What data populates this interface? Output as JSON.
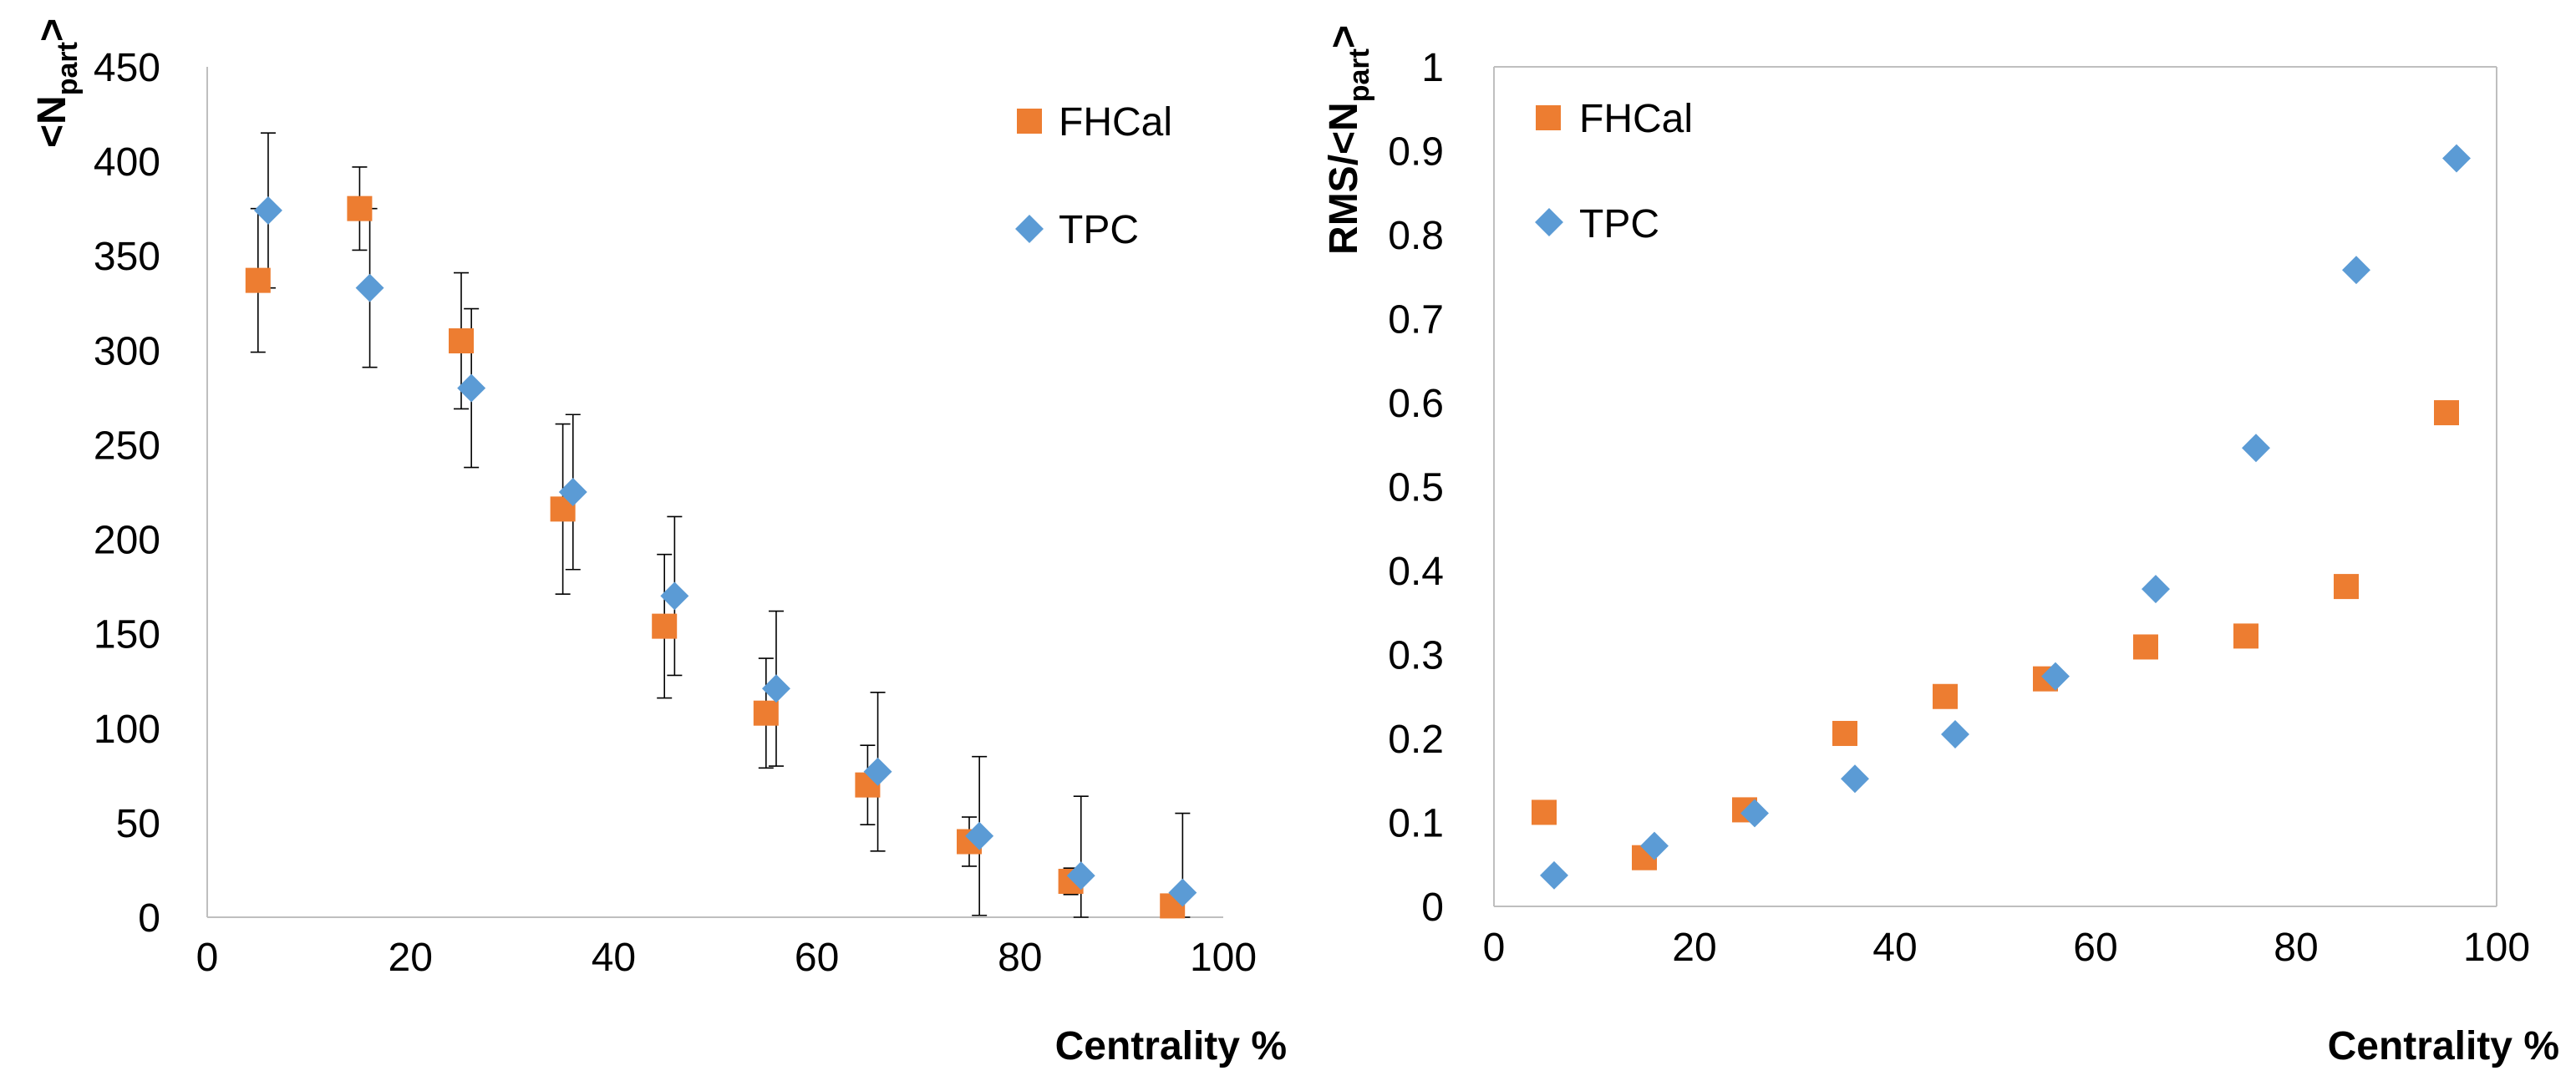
{
  "colors": {
    "fhcal": "#ED7D31",
    "tpc": "#5B9BD5",
    "axis": "#BFBFBF",
    "errorbar": "#000000"
  },
  "chart_data": [
    {
      "type": "scatter",
      "xlabel": "Centrality %",
      "ylabel_main": "<N",
      "ylabel_sub": "part",
      "ylabel_end": ">",
      "xlim": [
        0,
        100
      ],
      "ylim": [
        0,
        450
      ],
      "xticks": [
        0,
        20,
        40,
        60,
        80,
        100
      ],
      "yticks": [
        0,
        50,
        100,
        150,
        200,
        250,
        300,
        350,
        400,
        450
      ],
      "legend": "top-right",
      "series": [
        {
          "name": "FHCal",
          "marker": "square",
          "x": [
            5,
            15,
            25,
            35,
            45,
            55,
            65,
            75,
            85,
            95
          ],
          "y": [
            337,
            375,
            305,
            216,
            154,
            108,
            70,
            40,
            19,
            6
          ],
          "err": [
            38,
            22,
            36,
            45,
            38,
            29,
            21,
            13,
            7,
            2
          ]
        },
        {
          "name": "TPC",
          "marker": "diamond",
          "x": [
            6,
            16,
            26,
            36,
            46,
            56,
            66,
            76,
            86,
            96
          ],
          "y": [
            374,
            333,
            280,
            225,
            170,
            121,
            77,
            43,
            22,
            13
          ],
          "err": [
            41,
            42,
            42,
            41,
            42,
            41,
            42,
            42,
            42,
            42
          ]
        }
      ]
    },
    {
      "type": "scatter",
      "xlabel": "Centrality %",
      "ylabel_main": "RMS/<N",
      "ylabel_sub": "part",
      "ylabel_end": ">",
      "xlim": [
        0,
        100
      ],
      "ylim": [
        0,
        1
      ],
      "xticks": [
        0,
        20,
        40,
        60,
        80,
        100
      ],
      "yticks": [
        0,
        0.1,
        0.2,
        0.3,
        0.4,
        0.5,
        0.6,
        0.7,
        0.8,
        0.9,
        1
      ],
      "legend": "top-left",
      "series": [
        {
          "name": "FHCal",
          "marker": "square",
          "x": [
            5,
            15,
            25,
            35,
            45,
            55,
            65,
            75,
            85,
            95
          ],
          "y": [
            0.112,
            0.058,
            0.115,
            0.206,
            0.25,
            0.271,
            0.309,
            0.322,
            0.381,
            0.588
          ]
        },
        {
          "name": "TPC",
          "marker": "diamond",
          "x": [
            6,
            16,
            26,
            36,
            46,
            56,
            66,
            76,
            86,
            96
          ],
          "y": [
            0.037,
            0.072,
            0.111,
            0.152,
            0.205,
            0.274,
            0.378,
            0.546,
            0.758,
            0.891
          ]
        }
      ]
    }
  ]
}
